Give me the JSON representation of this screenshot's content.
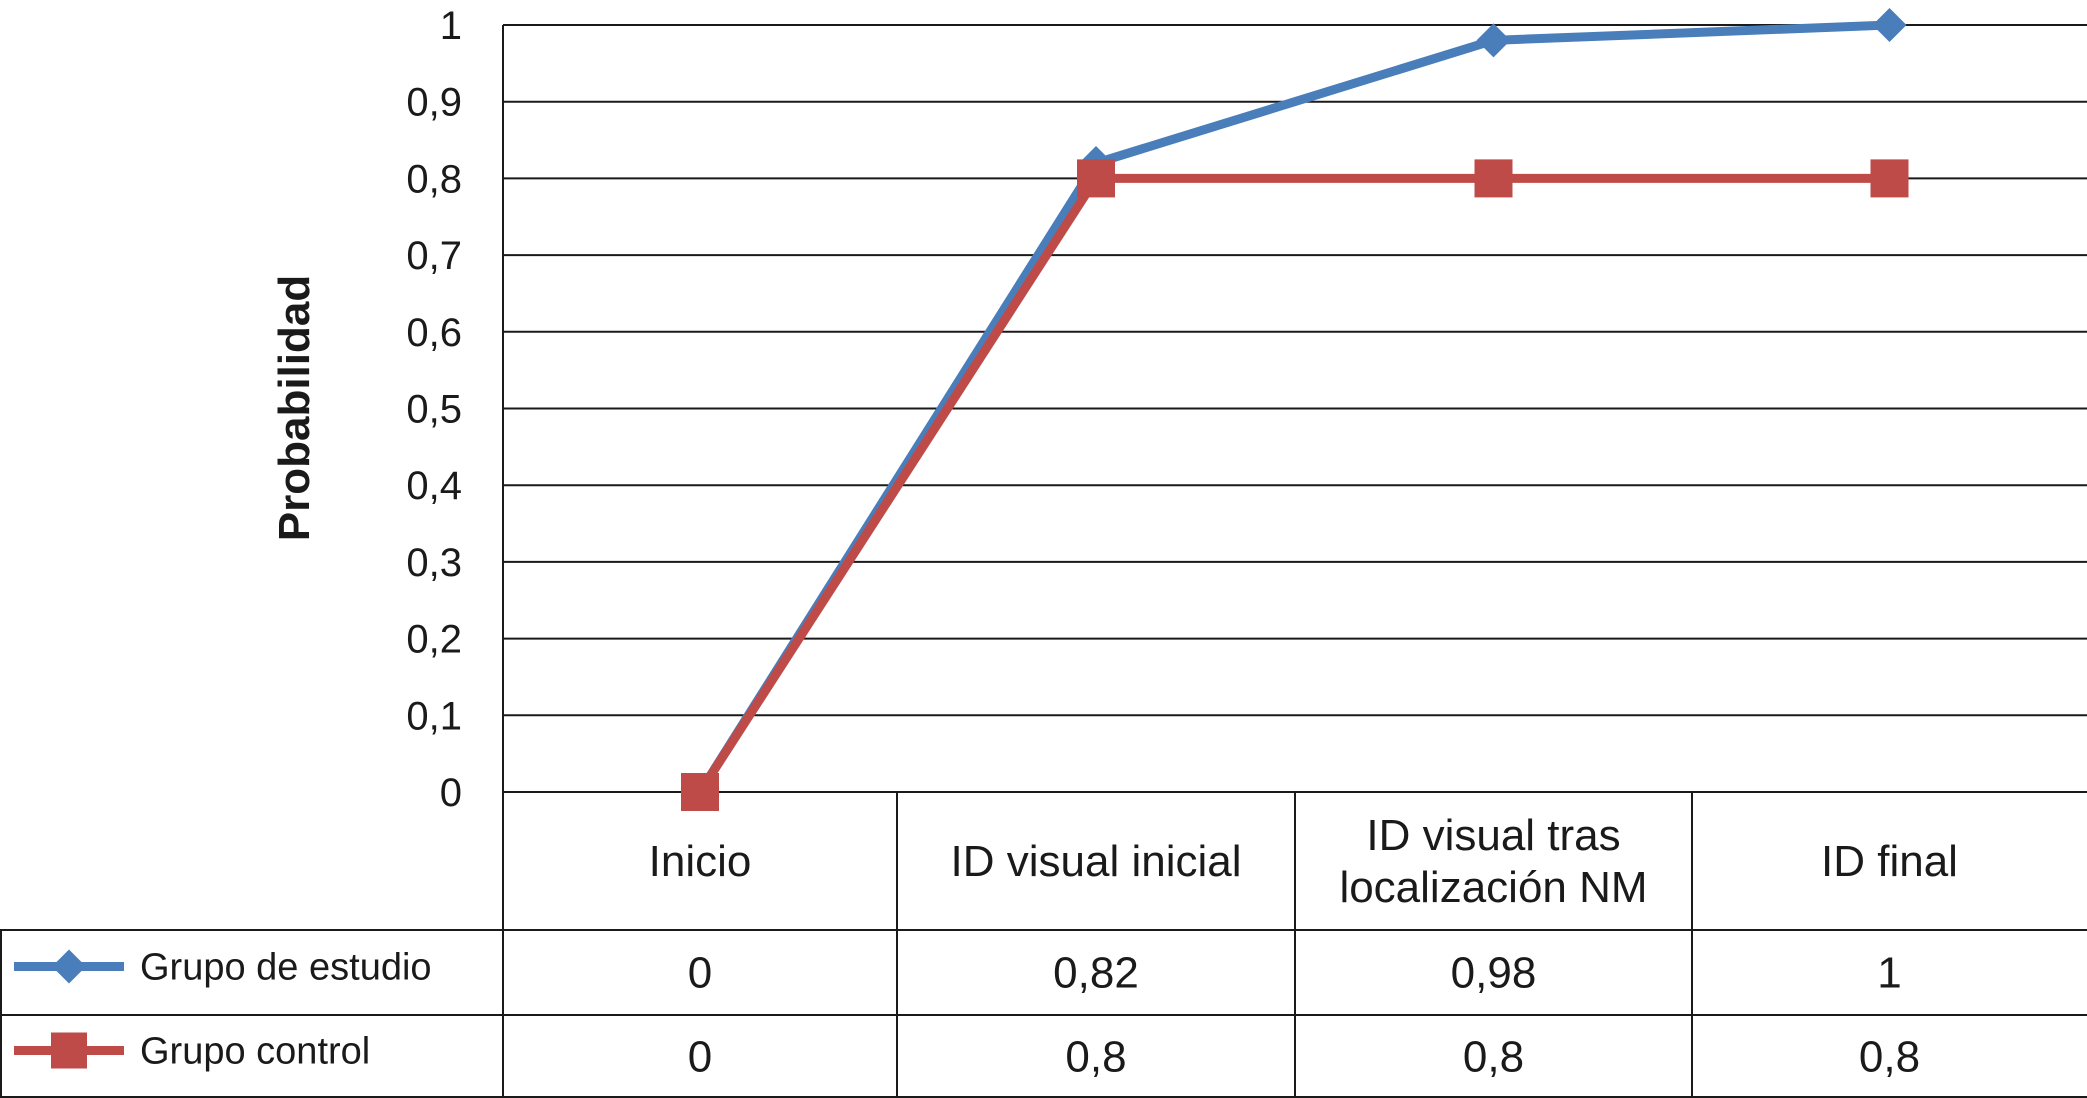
{
  "chart_data": {
    "type": "line",
    "title": "",
    "xlabel": "",
    "ylabel": "Probabilidad",
    "ylim": [
      0,
      1
    ],
    "yticks": [
      "0",
      "0,1",
      "0,2",
      "0,3",
      "0,4",
      "0,5",
      "0,6",
      "0,7",
      "0,8",
      "0,9",
      "1"
    ],
    "categories": [
      [
        "Inicio"
      ],
      [
        "ID visual inicial"
      ],
      [
        "ID visual tras",
        "localización NM"
      ],
      [
        "ID final"
      ]
    ],
    "grid": true,
    "legend_placement": "data-table-left",
    "series": [
      {
        "name": "Grupo de estudio",
        "values": [
          0,
          0.82,
          0.98,
          1
        ],
        "labels": [
          "0",
          "0,82",
          "0,98",
          "1"
        ],
        "color": "#4a7ebb",
        "marker": "diamond"
      },
      {
        "name": "Grupo control",
        "values": [
          0,
          0.8,
          0.8,
          0.8
        ],
        "labels": [
          "0",
          "0,8",
          "0,8",
          "0,8"
        ],
        "color": "#be4b48",
        "marker": "square"
      }
    ]
  }
}
